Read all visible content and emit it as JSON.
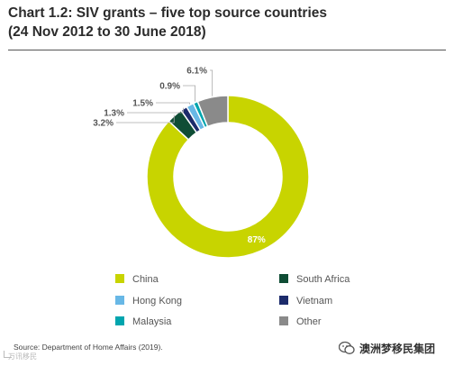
{
  "title_line1": "Chart 1.2: SIV grants – five top source countries",
  "title_line2": "(24 Nov 2012 to 30 June 2018)",
  "source": "Source: Department of Home Affairs (2019).",
  "watermark_left": "万讯移民",
  "watermark_right": "澳洲梦移民集团",
  "chart_data": {
    "type": "pie",
    "donut": true,
    "categories": [
      "China",
      "South Africa",
      "Vietnam",
      "Hong Kong",
      "Malaysia",
      "Other"
    ],
    "values": [
      87,
      3.2,
      1.3,
      1.5,
      0.9,
      6.1
    ],
    "labels": [
      "87%",
      "3.2%",
      "1.3%",
      "1.5%",
      "0.9%",
      "6.1%"
    ],
    "colors": [
      "#c8d400",
      "#0f4d35",
      "#1c2b6b",
      "#68b8e6",
      "#00a5ae",
      "#8a8a8a"
    ],
    "legend": {
      "placement": "bottom",
      "columns": [
        [
          "China",
          "Hong Kong",
          "Malaysia"
        ],
        [
          "South Africa",
          "Vietnam",
          "Other"
        ]
      ]
    }
  }
}
